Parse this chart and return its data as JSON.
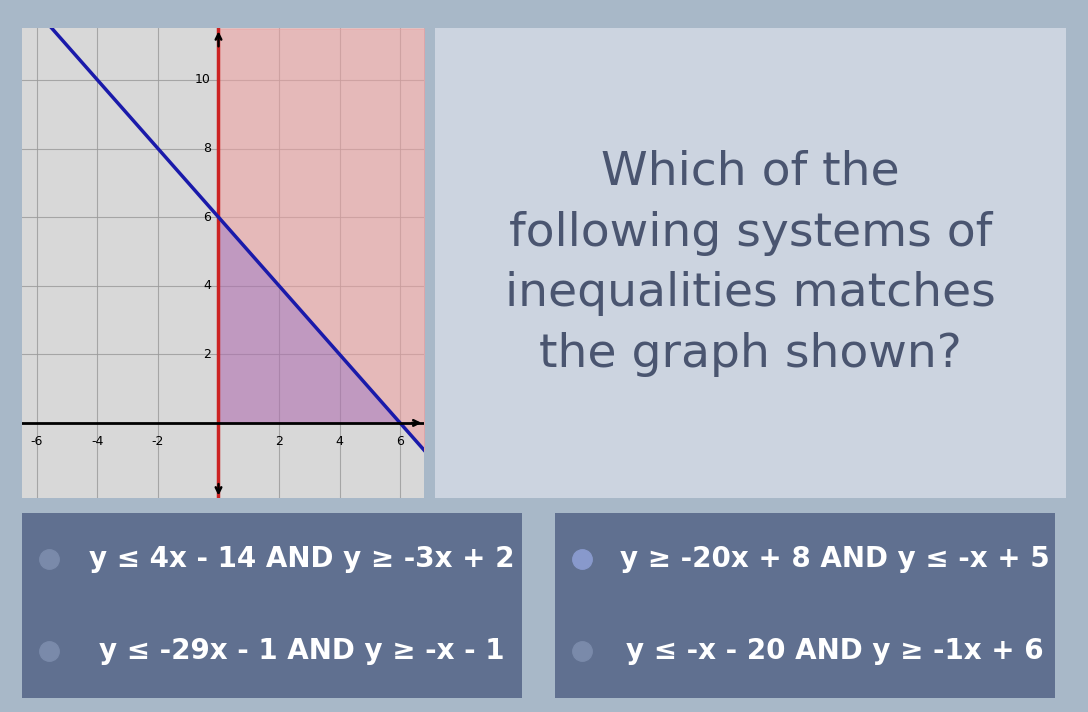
{
  "bg_color": "#a8b8c8",
  "graph_bg": "#d8d8d8",
  "graph_xlim": [
    -6.5,
    6.8
  ],
  "graph_ylim": [
    -2.2,
    11.5
  ],
  "xticks": [
    -6,
    -4,
    -2,
    2,
    4,
    6
  ],
  "yticks": [
    2,
    4,
    6,
    8,
    10
  ],
  "blue_line_slope": -1,
  "blue_line_intercept": 6,
  "pink_fill_color": "#f0a0a0",
  "pink_fill_alpha": 0.55,
  "purple_fill_color": "#b070b0",
  "purple_fill_alpha": 0.6,
  "blue_line_color": "#1a1aaa",
  "red_line_color": "#cc2222",
  "grid_color": "#999999",
  "grid_alpha": 0.8,
  "question_text": "Which of the\nfollowing systems of\ninequalities matches\nthe graph shown?",
  "question_bg": "#ccd4e0",
  "question_text_color": "#4a5570",
  "answer_bg": "#607090",
  "answer_text_color": "#ffffff",
  "answers": [
    "y ≤ 4x - 14 AND y ≥ -3x + 2",
    "y ≥ -20x + 8 AND y ≤ -x + 5",
    "y ≤ -29x - 1 AND y ≥ -x - 1",
    "y ≤ -x - 20 AND y ≥ -1x + 6"
  ],
  "dot_colors": [
    "#7a8aaa",
    "#8899cc",
    "#7a8aaa",
    "#7a8aaa"
  ],
  "title_fontsize": 34,
  "answer_fontsize": 20
}
